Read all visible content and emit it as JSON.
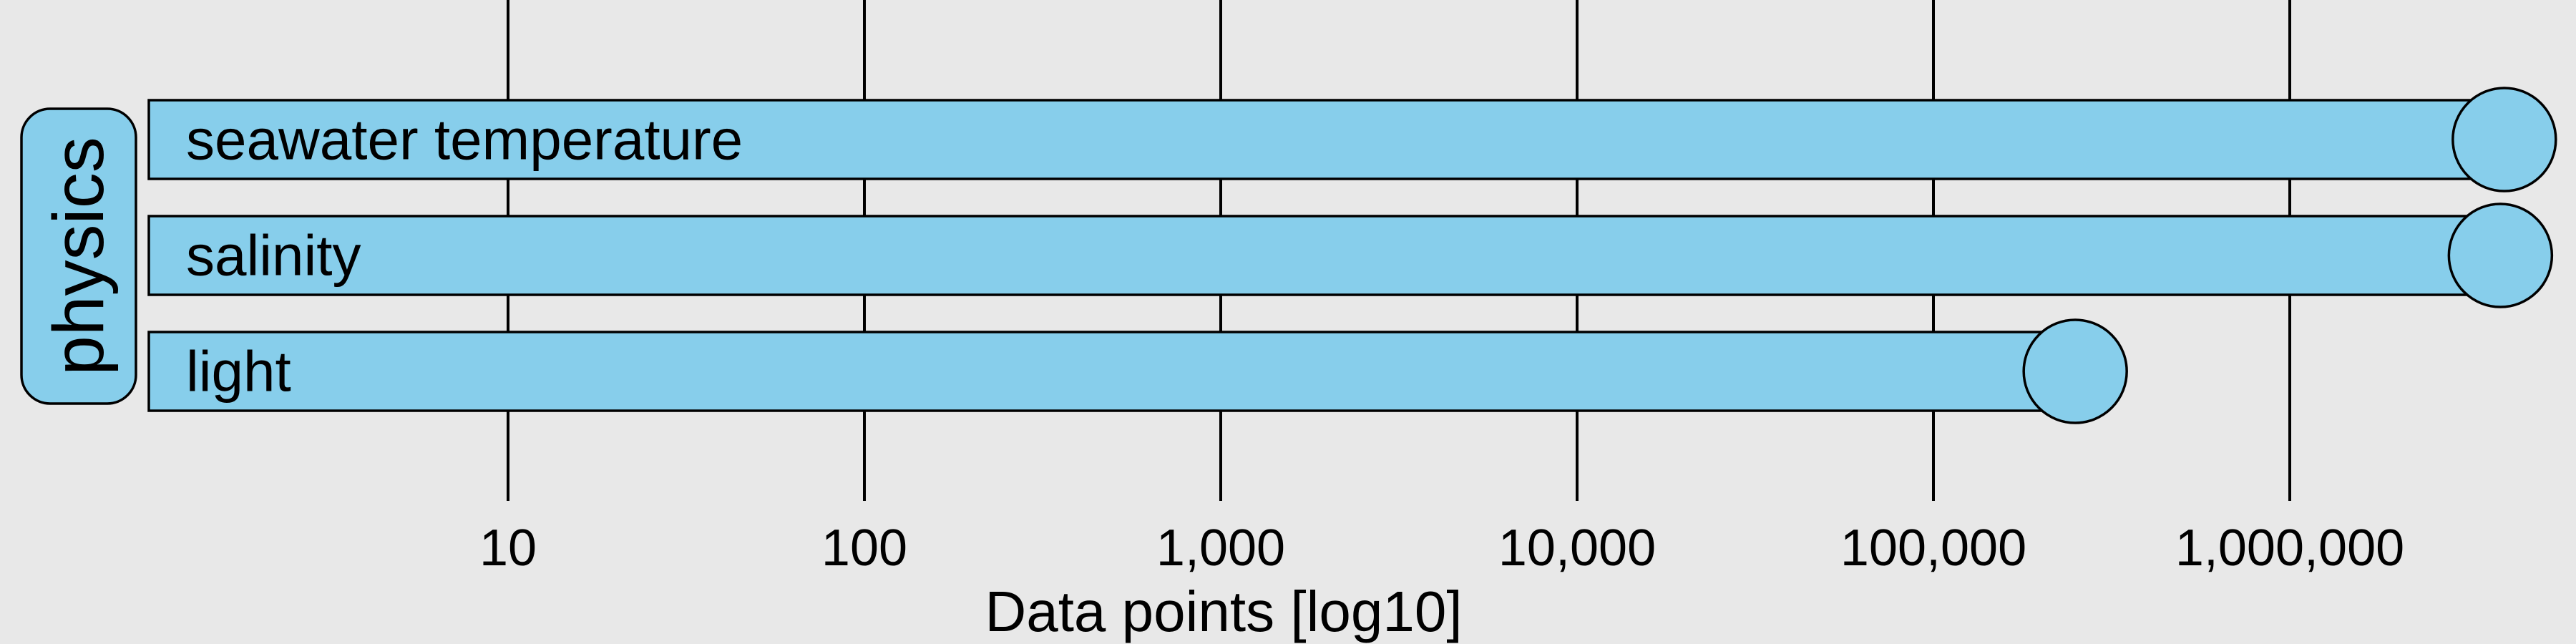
{
  "chart_data": {
    "type": "bar",
    "orientation": "horizontal",
    "xscale": "log10",
    "xlim": [
      1,
      10000000
    ],
    "xlabel": "Data points [log10]",
    "ticks": [
      {
        "value": 10,
        "label": "10"
      },
      {
        "value": 100,
        "label": "100"
      },
      {
        "value": 1000,
        "label": "1,000"
      },
      {
        "value": 10000,
        "label": "10,000"
      },
      {
        "value": 100000,
        "label": "100,000"
      },
      {
        "value": 1000000,
        "label": "1,000,000"
      }
    ],
    "group": "physics",
    "categories": [
      "seawater temperature",
      "salinity",
      "light"
    ],
    "values": [
      4000000,
      3900000,
      250000
    ],
    "bar_color": "#87ceeb",
    "background": "#e8e8e8"
  }
}
